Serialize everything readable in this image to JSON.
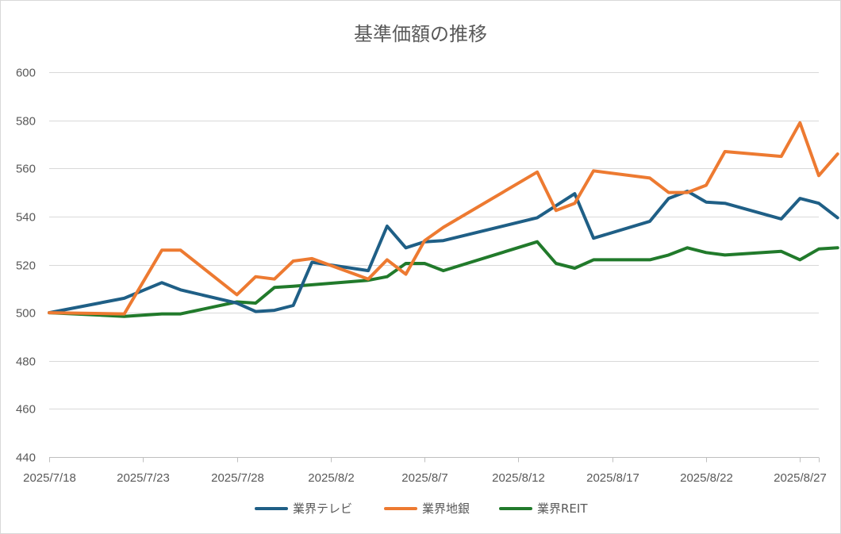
{
  "chart_data": {
    "type": "line",
    "title": "基準価額の推移",
    "xlabel": "",
    "ylabel": "",
    "ylim": [
      440,
      600
    ],
    "yticks": [
      440,
      460,
      480,
      500,
      520,
      540,
      560,
      580,
      600
    ],
    "xlim": [
      "2025-07-18",
      "2025-08-28"
    ],
    "xticks": [
      "2025-07-18",
      "2025-07-23",
      "2025-07-28",
      "2025-08-02",
      "2025-08-07",
      "2025-08-12",
      "2025-08-17",
      "2025-08-22",
      "2025-08-27"
    ],
    "xtick_labels": [
      "2025/7/18",
      "2025/7/23",
      "2025/7/28",
      "2025/8/2",
      "2025/8/7",
      "2025/8/12",
      "2025/8/17",
      "2025/8/22",
      "2025/8/27"
    ],
    "grid": true,
    "legend_position": "bottom",
    "series": [
      {
        "name": "業界テレビ",
        "color": "#1f5f86",
        "points": [
          [
            "2025-07-18",
            500
          ],
          [
            "2025-07-22",
            506
          ],
          [
            "2025-07-24",
            512.5
          ],
          [
            "2025-07-25",
            509.5
          ],
          [
            "2025-07-28",
            504
          ],
          [
            "2025-07-29",
            500.5
          ],
          [
            "2025-07-30",
            501
          ],
          [
            "2025-07-31",
            503
          ],
          [
            "2025-08-01",
            521
          ],
          [
            "2025-08-04",
            517.5
          ],
          [
            "2025-08-05",
            536
          ],
          [
            "2025-08-06",
            527
          ],
          [
            "2025-08-07",
            529.5
          ],
          [
            "2025-08-08",
            530
          ],
          [
            "2025-08-13",
            539.5
          ],
          [
            "2025-08-15",
            549.5
          ],
          [
            "2025-08-16",
            531
          ],
          [
            "2025-08-19",
            538
          ],
          [
            "2025-08-20",
            547.5
          ],
          [
            "2025-08-21",
            550.5
          ],
          [
            "2025-08-22",
            546
          ],
          [
            "2025-08-23",
            545.5
          ],
          [
            "2025-08-26",
            539
          ],
          [
            "2025-08-27",
            547.5
          ],
          [
            "2025-08-28",
            545.5
          ],
          [
            "2025-08-29",
            539.5
          ]
        ]
      },
      {
        "name": "業界地銀",
        "color": "#ed7a31",
        "points": [
          [
            "2025-07-18",
            500
          ],
          [
            "2025-07-22",
            499.5
          ],
          [
            "2025-07-24",
            526
          ],
          [
            "2025-07-25",
            526
          ],
          [
            "2025-07-28",
            507.5
          ],
          [
            "2025-07-29",
            515
          ],
          [
            "2025-07-30",
            514
          ],
          [
            "2025-07-31",
            521.5
          ],
          [
            "2025-08-01",
            522.5
          ],
          [
            "2025-08-04",
            514
          ],
          [
            "2025-08-05",
            522
          ],
          [
            "2025-08-06",
            516
          ],
          [
            "2025-08-07",
            530
          ],
          [
            "2025-08-08",
            535.5
          ],
          [
            "2025-08-13",
            558.5
          ],
          [
            "2025-08-14",
            542.5
          ],
          [
            "2025-08-15",
            545.5
          ],
          [
            "2025-08-16",
            559
          ],
          [
            "2025-08-19",
            556
          ],
          [
            "2025-08-20",
            550
          ],
          [
            "2025-08-21",
            550
          ],
          [
            "2025-08-22",
            553
          ],
          [
            "2025-08-23",
            567
          ],
          [
            "2025-08-26",
            565
          ],
          [
            "2025-08-27",
            579
          ],
          [
            "2025-08-28",
            557
          ],
          [
            "2025-08-29",
            566
          ]
        ]
      },
      {
        "name": "業界REIT",
        "color": "#217a2b",
        "points": [
          [
            "2025-07-18",
            500
          ],
          [
            "2025-07-22",
            498.5
          ],
          [
            "2025-07-24",
            499.5
          ],
          [
            "2025-07-25",
            499.5
          ],
          [
            "2025-07-28",
            504.5
          ],
          [
            "2025-07-29",
            504
          ],
          [
            "2025-07-30",
            510.5
          ],
          [
            "2025-07-31",
            511
          ],
          [
            "2025-08-04",
            513.5
          ],
          [
            "2025-08-05",
            515
          ],
          [
            "2025-08-06",
            520.5
          ],
          [
            "2025-08-07",
            520.5
          ],
          [
            "2025-08-08",
            517.5
          ],
          [
            "2025-08-13",
            529.5
          ],
          [
            "2025-08-14",
            520.5
          ],
          [
            "2025-08-15",
            518.5
          ],
          [
            "2025-08-16",
            522
          ],
          [
            "2025-08-19",
            522
          ],
          [
            "2025-08-20",
            524
          ],
          [
            "2025-08-21",
            527
          ],
          [
            "2025-08-22",
            525
          ],
          [
            "2025-08-23",
            524
          ],
          [
            "2025-08-26",
            525.5
          ],
          [
            "2025-08-27",
            522
          ],
          [
            "2025-08-28",
            526.5
          ],
          [
            "2025-08-29",
            527
          ]
        ]
      }
    ]
  }
}
